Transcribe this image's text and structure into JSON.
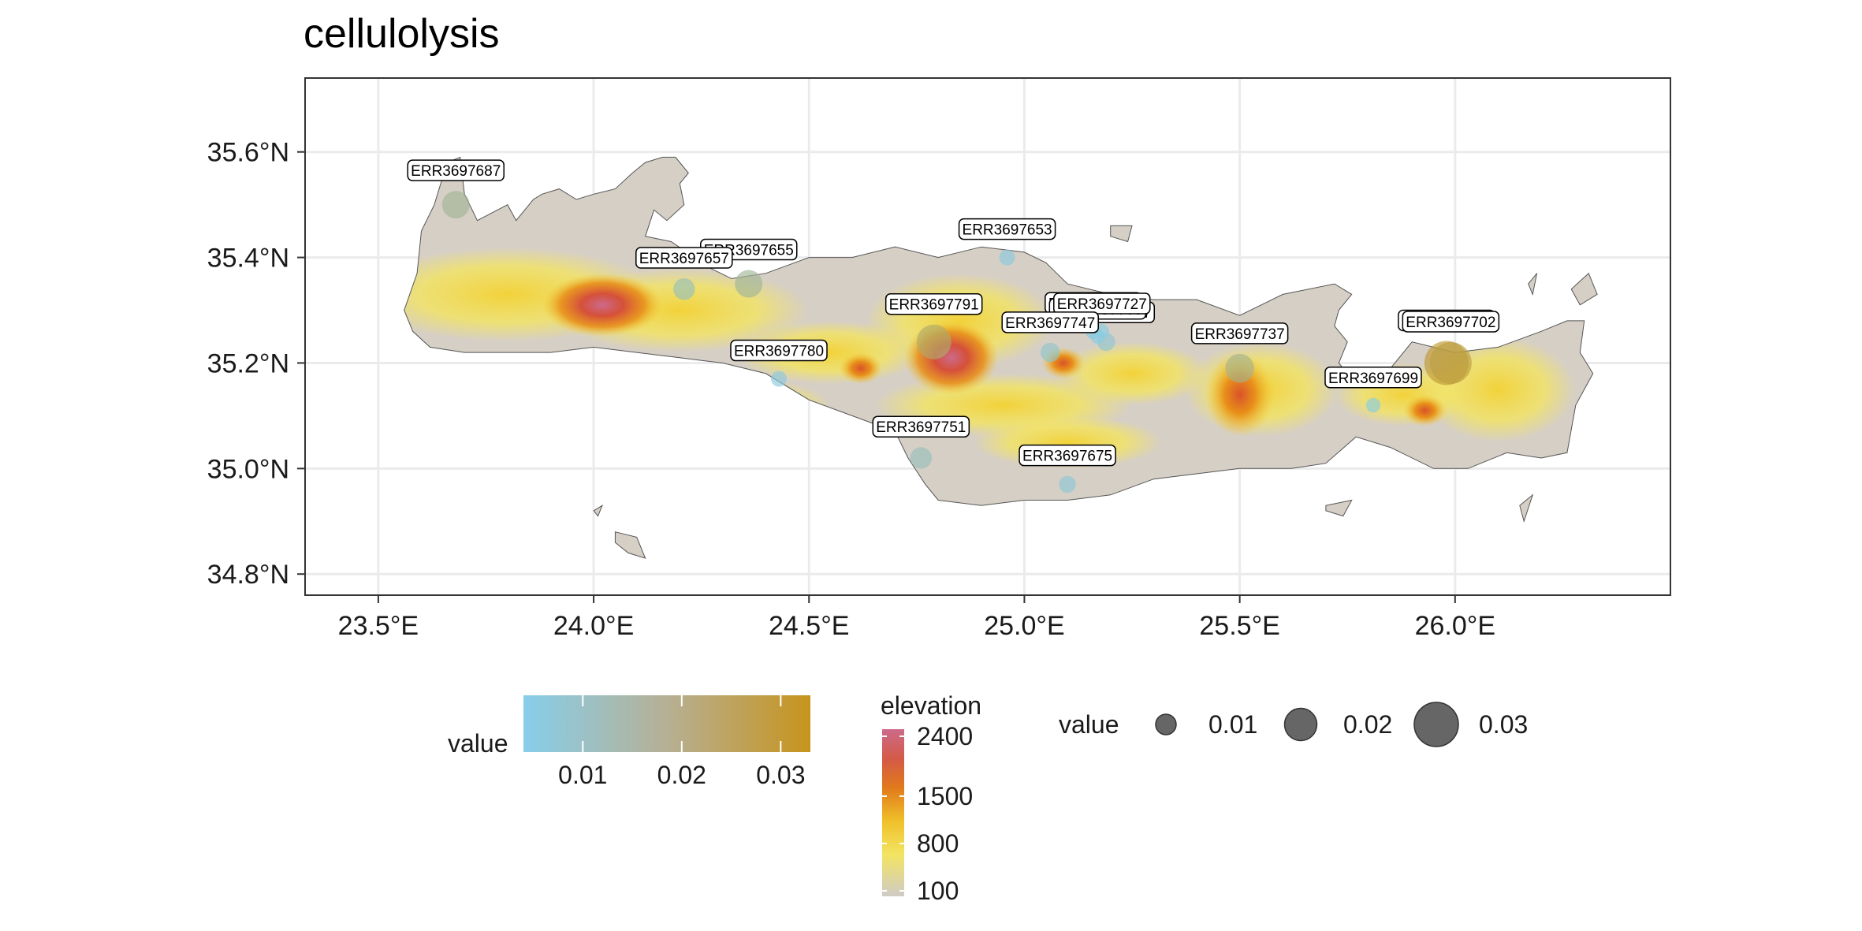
{
  "chart_data": {
    "type": "scatter",
    "title": "cellulolysis",
    "xlabel": "",
    "ylabel": "",
    "xlim": [
      23.33,
      26.5
    ],
    "ylim": [
      34.76,
      35.74
    ],
    "x_ticks": [
      23.5,
      24.0,
      24.5,
      25.0,
      25.5,
      26.0
    ],
    "x_tick_labels": [
      "23.5°E",
      "24.0°E",
      "24.5°E",
      "25.0°E",
      "25.5°E",
      "26.0°E"
    ],
    "y_ticks": [
      34.8,
      35.0,
      35.2,
      35.4,
      35.6
    ],
    "y_tick_labels": [
      "34.8°N",
      "35.0°N",
      "35.2°N",
      "35.4°N",
      "35.6°N"
    ],
    "grid": true,
    "background_layer": "elevation raster of Crete",
    "points": [
      {
        "label": "ERR3697687",
        "lon": 23.68,
        "lat": 35.5,
        "value": 0.016
      },
      {
        "label": "ERR3697655",
        "lon": 24.36,
        "lat": 35.35,
        "value": 0.016
      },
      {
        "label": "ERR3697657",
        "lon": 24.21,
        "lat": 35.34,
        "value": 0.011
      },
      {
        "label": "ERR3697780",
        "lon": 24.43,
        "lat": 35.17,
        "value": 0.006
      },
      {
        "label": "ERR3697791",
        "lon": 24.79,
        "lat": 35.24,
        "value": 0.022
      },
      {
        "label": "ERR3697751",
        "lon": 24.76,
        "lat": 35.02,
        "value": 0.011
      },
      {
        "label": "ERR3697653",
        "lon": 24.96,
        "lat": 35.4,
        "value": 0.006
      },
      {
        "label": "ERR3697717",
        "lon": 25.19,
        "lat": 35.24,
        "value": 0.008
      },
      {
        "label": "ERR3697720",
        "lon": 25.16,
        "lat": 35.26,
        "value": 0.006
      },
      {
        "label": "ERR3697709",
        "lon": 25.17,
        "lat": 35.25,
        "value": 0.005
      },
      {
        "label": "ERR3697727",
        "lon": 25.18,
        "lat": 35.26,
        "value": 0.005
      },
      {
        "label": "ERR3697747",
        "lon": 25.06,
        "lat": 35.22,
        "value": 0.009
      },
      {
        "label": "ERR3697675",
        "lon": 25.1,
        "lat": 34.97,
        "value": 0.007
      },
      {
        "label": "ERR3697737",
        "lon": 25.5,
        "lat": 35.19,
        "value": 0.017
      },
      {
        "label": "ERR3697699",
        "lon": 25.81,
        "lat": 35.12,
        "value": 0.005
      },
      {
        "label": "ERR3697709",
        "lon": 25.98,
        "lat": 35.2,
        "value": 0.03
      },
      {
        "label": "ERR3697702",
        "lon": 25.99,
        "lat": 35.2,
        "value": 0.028
      }
    ],
    "legend_value_color": {
      "title": "value",
      "breaks": [
        0.01,
        0.02,
        0.03
      ],
      "labels": [
        "0.01",
        "0.02",
        "0.03"
      ],
      "range": [
        0.004,
        0.033
      ],
      "low_color": "#87CEEB",
      "high_color": "#C7941E"
    },
    "legend_elevation": {
      "title": "elevation",
      "breaks": [
        2400,
        1500,
        800,
        100
      ],
      "labels": [
        "2400",
        "1500",
        "800",
        "100"
      ],
      "colors": [
        "#CC6A8A",
        "#D9532A",
        "#E8901A",
        "#F2C82E",
        "#F2E85A",
        "#CCCCCC"
      ]
    },
    "legend_value_size": {
      "title": "value",
      "breaks": [
        0.01,
        0.02,
        0.03
      ],
      "labels": [
        "0.01",
        "0.02",
        "0.03"
      ],
      "color": "#555555"
    }
  }
}
